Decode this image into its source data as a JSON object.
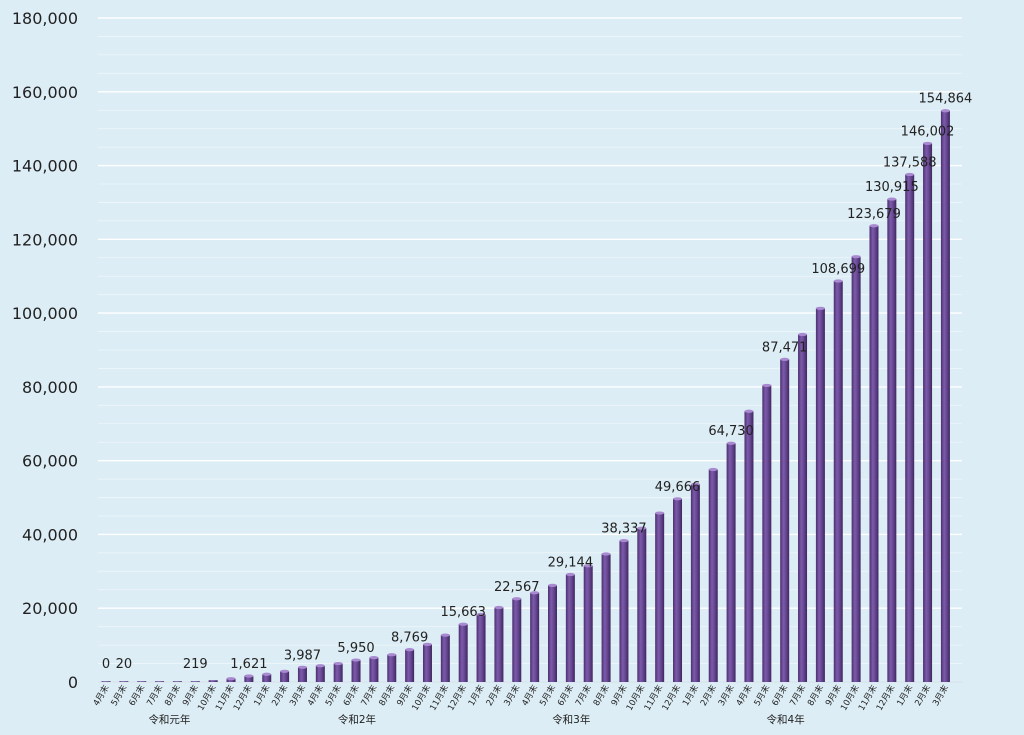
{
  "chart_data": {
    "type": "bar",
    "title": "",
    "xlabel": "",
    "ylabel": "",
    "ylim": [
      0,
      180000
    ],
    "y_ticks": [
      0,
      20000,
      40000,
      60000,
      80000,
      100000,
      120000,
      140000,
      160000,
      180000
    ],
    "y_tick_labels": [
      "0",
      "20,000",
      "40,000",
      "60,000",
      "80,000",
      "100,000",
      "120,000",
      "140,000",
      "160,000",
      "180,000"
    ],
    "grid": true,
    "legend": "none",
    "bar_color": "#6a4a96",
    "categories": [
      "4月末",
      "5月末",
      "6月末",
      "7月末",
      "8月末",
      "9月末",
      "10月末",
      "11月末",
      "12月末",
      "1月末",
      "2月末",
      "3月末",
      "4月末",
      "5月末",
      "6月末",
      "7月末",
      "8月末",
      "9月末",
      "10月末",
      "11月末",
      "12月末",
      "1月末",
      "2月末",
      "3月末",
      "4月末",
      "5月末",
      "6月末",
      "7月末",
      "8月末",
      "9月末",
      "10月末",
      "11月末",
      "12月末",
      "1月末",
      "2月末",
      "3月末",
      "4月末",
      "5月末",
      "6月末",
      "7月末",
      "8月末",
      "9月末",
      "10月末",
      "11月末",
      "12月末",
      "1月末",
      "2月末",
      "3月末"
    ],
    "values": [
      0,
      20,
      60,
      120,
      160,
      219,
      480,
      900,
      1621,
      2100,
      2900,
      3987,
      4400,
      5000,
      5950,
      6600,
      7400,
      8769,
      10200,
      12700,
      15663,
      18300,
      20200,
      22567,
      24200,
      26200,
      29144,
      31500,
      34700,
      38337,
      41700,
      45800,
      49666,
      53600,
      57600,
      64730,
      73400,
      80400,
      87471,
      94200,
      101300,
      108699,
      115300,
      123679,
      130915,
      137588,
      146002,
      154864
    ],
    "data_labels": [
      {
        "index": 0,
        "text": "0"
      },
      {
        "index": 1,
        "text": "20"
      },
      {
        "index": 5,
        "text": "219"
      },
      {
        "index": 8,
        "text": "1,621"
      },
      {
        "index": 11,
        "text": "3,987"
      },
      {
        "index": 14,
        "text": "5,950"
      },
      {
        "index": 17,
        "text": "8,769"
      },
      {
        "index": 20,
        "text": "15,663"
      },
      {
        "index": 23,
        "text": "22,567"
      },
      {
        "index": 26,
        "text": "29,144"
      },
      {
        "index": 29,
        "text": "38,337"
      },
      {
        "index": 32,
        "text": "49,666"
      },
      {
        "index": 35,
        "text": "64,730"
      },
      {
        "index": 38,
        "text": "87,471"
      },
      {
        "index": 41,
        "text": "108,699"
      },
      {
        "index": 43,
        "text": "123,679"
      },
      {
        "index": 44,
        "text": "130,915"
      },
      {
        "index": 45,
        "text": "137,588"
      },
      {
        "index": 46,
        "text": "146,002"
      },
      {
        "index": 47,
        "text": "154,864"
      }
    ],
    "year_groups": [
      {
        "label": "令和元年",
        "start": 0,
        "end": 8
      },
      {
        "label": "令和2年",
        "start": 9,
        "end": 20
      },
      {
        "label": "令和3年",
        "start": 21,
        "end": 32
      },
      {
        "label": "令和4年",
        "start": 33,
        "end": 44
      }
    ]
  }
}
